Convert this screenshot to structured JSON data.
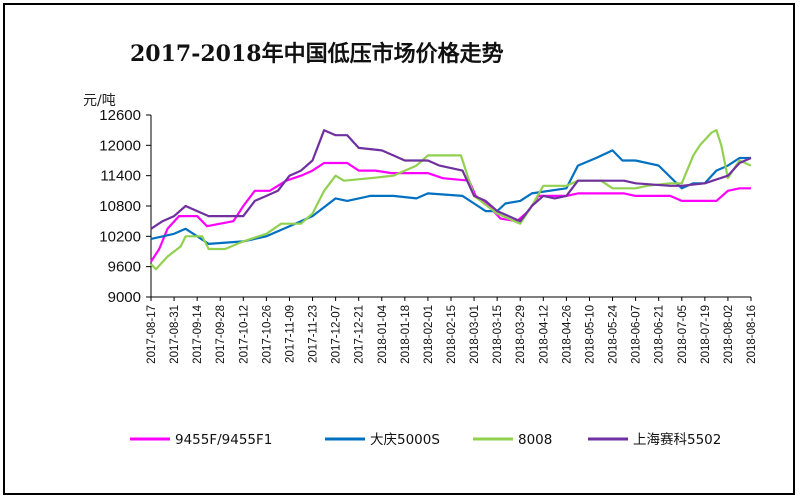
{
  "chart_data": {
    "type": "line",
    "title": "2017-2018年中国低压市场价格走势",
    "ylabel": "元/吨",
    "xlabel": "",
    "ylim": [
      9000,
      12600
    ],
    "yticks": [
      9000,
      9600,
      10200,
      10800,
      11400,
      12000,
      12600
    ],
    "grid": false,
    "legend_position": "bottom",
    "x_range": [
      "2017-08-17",
      "2018-08-16"
    ],
    "x_tick_labels": [
      "2017-08-17",
      "2017-08-31",
      "2017-09-14",
      "2017-09-28",
      "2017-10-12",
      "2017-10-26",
      "2017-11-09",
      "2017-11-23",
      "2017-12-07",
      "2017-12-21",
      "2018-01-04",
      "2018-01-18",
      "2018-02-01",
      "2018-02-15",
      "2018-03-01",
      "2018-03-15",
      "2018-03-29",
      "2018-04-12",
      "2018-04-26",
      "2018-05-10",
      "2018-05-24",
      "2018-06-07",
      "2018-06-21",
      "2018-07-05",
      "2018-07-19",
      "2018-08-02",
      "2018-08-16"
    ],
    "series": [
      {
        "name": "9455F/9455F1",
        "color": "#ff00ff",
        "points": [
          [
            "2017-08-17",
            9700
          ],
          [
            "2017-08-22",
            9950
          ],
          [
            "2017-08-27",
            10350
          ],
          [
            "2017-09-03",
            10600
          ],
          [
            "2017-09-14",
            10600
          ],
          [
            "2017-09-20",
            10400
          ],
          [
            "2017-10-06",
            10500
          ],
          [
            "2017-10-12",
            10800
          ],
          [
            "2017-10-19",
            11100
          ],
          [
            "2017-10-28",
            11100
          ],
          [
            "2017-11-07",
            11300
          ],
          [
            "2017-11-16",
            11400
          ],
          [
            "2017-11-23",
            11500
          ],
          [
            "2017-11-30",
            11650
          ],
          [
            "2017-12-14",
            11650
          ],
          [
            "2017-12-21",
            11500
          ],
          [
            "2017-12-31",
            11500
          ],
          [
            "2018-01-10",
            11450
          ],
          [
            "2018-02-01",
            11450
          ],
          [
            "2018-02-10",
            11350
          ],
          [
            "2018-02-26",
            11300
          ],
          [
            "2018-03-02",
            11000
          ],
          [
            "2018-03-10",
            10800
          ],
          [
            "2018-03-17",
            10550
          ],
          [
            "2018-03-27",
            10500
          ],
          [
            "2018-04-03",
            10700
          ],
          [
            "2018-04-09",
            11000
          ],
          [
            "2018-04-26",
            11000
          ],
          [
            "2018-05-03",
            11050
          ],
          [
            "2018-05-31",
            11050
          ],
          [
            "2018-06-07",
            11000
          ],
          [
            "2018-06-28",
            11000
          ],
          [
            "2018-07-05",
            10900
          ],
          [
            "2018-07-26",
            10900
          ],
          [
            "2018-08-02",
            11100
          ],
          [
            "2018-08-09",
            11150
          ],
          [
            "2018-08-16",
            11150
          ]
        ]
      },
      {
        "name": "大庆5000S",
        "color": "#0070c0",
        "points": [
          [
            "2017-08-17",
            10150
          ],
          [
            "2017-08-31",
            10250
          ],
          [
            "2017-09-07",
            10350
          ],
          [
            "2017-09-14",
            10200
          ],
          [
            "2017-09-21",
            10050
          ],
          [
            "2017-10-12",
            10100
          ],
          [
            "2017-10-26",
            10200
          ],
          [
            "2017-11-09",
            10400
          ],
          [
            "2017-11-23",
            10600
          ],
          [
            "2017-12-07",
            10950
          ],
          [
            "2017-12-14",
            10900
          ],
          [
            "2017-12-28",
            11000
          ],
          [
            "2018-01-11",
            11000
          ],
          [
            "2018-01-25",
            10950
          ],
          [
            "2018-02-01",
            11050
          ],
          [
            "2018-02-22",
            11000
          ],
          [
            "2018-03-01",
            10850
          ],
          [
            "2018-03-08",
            10700
          ],
          [
            "2018-03-15",
            10700
          ],
          [
            "2018-03-20",
            10850
          ],
          [
            "2018-03-29",
            10900
          ],
          [
            "2018-04-05",
            11050
          ],
          [
            "2018-04-26",
            11150
          ],
          [
            "2018-05-03",
            11600
          ],
          [
            "2018-05-14",
            11750
          ],
          [
            "2018-05-24",
            11900
          ],
          [
            "2018-05-30",
            11700
          ],
          [
            "2018-06-07",
            11700
          ],
          [
            "2018-06-21",
            11600
          ],
          [
            "2018-07-05",
            11150
          ],
          [
            "2018-07-12",
            11250
          ],
          [
            "2018-07-19",
            11250
          ],
          [
            "2018-07-26",
            11500
          ],
          [
            "2018-08-02",
            11600
          ],
          [
            "2018-08-09",
            11750
          ],
          [
            "2018-08-16",
            11750
          ]
        ]
      },
      {
        "name": "8008",
        "color": "#92d050",
        "points": [
          [
            "2017-08-17",
            9650
          ],
          [
            "2017-08-20",
            9550
          ],
          [
            "2017-08-27",
            9800
          ],
          [
            "2017-09-04",
            10000
          ],
          [
            "2017-09-07",
            10200
          ],
          [
            "2017-09-17",
            10200
          ],
          [
            "2017-09-21",
            9950
          ],
          [
            "2017-10-01",
            9950
          ],
          [
            "2017-10-12",
            10100
          ],
          [
            "2017-10-26",
            10250
          ],
          [
            "2017-11-04",
            10450
          ],
          [
            "2017-11-16",
            10450
          ],
          [
            "2017-11-23",
            10650
          ],
          [
            "2017-11-30",
            11100
          ],
          [
            "2017-12-07",
            11400
          ],
          [
            "2017-12-12",
            11300
          ],
          [
            "2017-12-28",
            11350
          ],
          [
            "2018-01-11",
            11400
          ],
          [
            "2018-01-25",
            11600
          ],
          [
            "2018-02-01",
            11800
          ],
          [
            "2018-02-21",
            11800
          ],
          [
            "2018-03-01",
            11000
          ],
          [
            "2018-03-15",
            10650
          ],
          [
            "2018-03-29",
            10450
          ],
          [
            "2018-04-05",
            10800
          ],
          [
            "2018-04-12",
            11200
          ],
          [
            "2018-04-26",
            11200
          ],
          [
            "2018-05-03",
            11300
          ],
          [
            "2018-05-17",
            11300
          ],
          [
            "2018-05-24",
            11150
          ],
          [
            "2018-06-07",
            11150
          ],
          [
            "2018-06-14",
            11200
          ],
          [
            "2018-06-28",
            11250
          ],
          [
            "2018-07-05",
            11250
          ],
          [
            "2018-07-12",
            11800
          ],
          [
            "2018-07-16",
            12000
          ],
          [
            "2018-07-23",
            12250
          ],
          [
            "2018-07-26",
            12300
          ],
          [
            "2018-07-29",
            12000
          ],
          [
            "2018-08-02",
            11350
          ],
          [
            "2018-08-09",
            11700
          ],
          [
            "2018-08-16",
            11600
          ]
        ]
      },
      {
        "name": "上海赛科5502",
        "color": "#7030a0",
        "points": [
          [
            "2017-08-17",
            10350
          ],
          [
            "2017-08-24",
            10500
          ],
          [
            "2017-08-31",
            10600
          ],
          [
            "2017-09-07",
            10800
          ],
          [
            "2017-09-14",
            10700
          ],
          [
            "2017-09-21",
            10600
          ],
          [
            "2017-09-28",
            10600
          ],
          [
            "2017-10-12",
            10600
          ],
          [
            "2017-10-19",
            10900
          ],
          [
            "2017-10-26",
            11000
          ],
          [
            "2017-11-02",
            11100
          ],
          [
            "2017-11-09",
            11400
          ],
          [
            "2017-11-16",
            11500
          ],
          [
            "2017-11-23",
            11700
          ],
          [
            "2017-11-30",
            12300
          ],
          [
            "2017-12-07",
            12200
          ],
          [
            "2017-12-14",
            12200
          ],
          [
            "2017-12-21",
            11950
          ],
          [
            "2018-01-04",
            11900
          ],
          [
            "2018-01-11",
            11800
          ],
          [
            "2018-01-18",
            11700
          ],
          [
            "2018-02-01",
            11700
          ],
          [
            "2018-02-08",
            11600
          ],
          [
            "2018-02-22",
            11500
          ],
          [
            "2018-03-01",
            11000
          ],
          [
            "2018-03-08",
            10900
          ],
          [
            "2018-03-15",
            10700
          ],
          [
            "2018-03-22",
            10600
          ],
          [
            "2018-03-29",
            10500
          ],
          [
            "2018-04-05",
            10800
          ],
          [
            "2018-04-12",
            11000
          ],
          [
            "2018-04-19",
            10950
          ],
          [
            "2018-04-26",
            11000
          ],
          [
            "2018-05-03",
            11300
          ],
          [
            "2018-05-31",
            11300
          ],
          [
            "2018-06-07",
            11250
          ],
          [
            "2018-06-28",
            11200
          ],
          [
            "2018-07-05",
            11200
          ],
          [
            "2018-07-19",
            11250
          ],
          [
            "2018-08-02",
            11400
          ],
          [
            "2018-08-09",
            11650
          ],
          [
            "2018-08-16",
            11750
          ]
        ]
      }
    ]
  }
}
